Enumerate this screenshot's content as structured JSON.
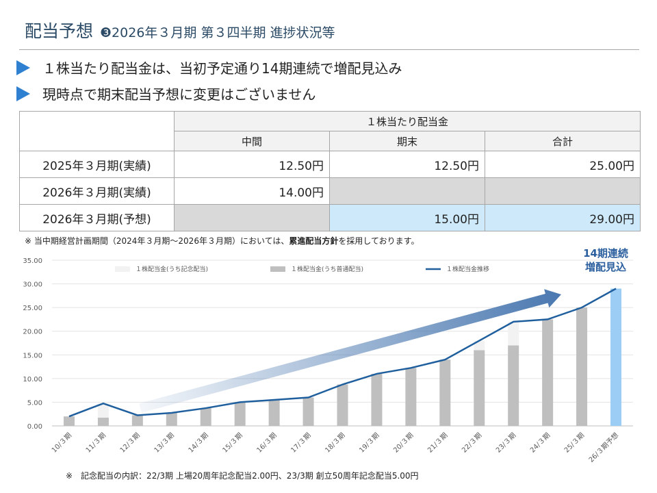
{
  "header": {
    "title": "配当予想",
    "subtitle": "❸2026年３月期 第３四半期 進捗状況等"
  },
  "bullets": [
    "１株当たり配当金は、当初予定通り14期連続で増配見込み",
    "現時点で期末配当予想に変更はございません"
  ],
  "dividend_table": {
    "group_header": "１株当たり配当金",
    "columns": [
      "中間",
      "期末",
      "合計"
    ],
    "rows": [
      {
        "label": "2025年３月期(実績)",
        "interim": "12.50円",
        "year_end": "12.50円",
        "total": "25.00円"
      },
      {
        "label": "2026年３月期(実績)",
        "interim": "14.00円",
        "year_end": "",
        "total": ""
      },
      {
        "label": "2026年３月期(予想)",
        "interim": "",
        "year_end": "15.00円",
        "total": "29.00円"
      }
    ]
  },
  "notes": {
    "policy_prefix": "※ 当中期経営計画期間（2024年３月期～2026年３月期）においては、",
    "policy_bold": "累進配当方針",
    "policy_suffix": "を採用しております。",
    "commemorative": "※　記念配当の内訳：22/3期 上場20周年記念配当2.00円、23/3期 創立50周年記念配当5.00円"
  },
  "callout": {
    "line1": "14期連続",
    "line2": "増配見込"
  },
  "colors": {
    "title": "#2b4a66",
    "bullet_marker": "#2f80d1",
    "ordinary_bar": "#bfbfbf",
    "commemorative_bar": "#f2f2f2",
    "forecast_bar": "#9ccdf5",
    "trend_line": "#1f5f9e",
    "arrow": "#4a78b0"
  },
  "chart_data": {
    "type": "bar",
    "categories": [
      "10/３期",
      "11/３期",
      "12/３期",
      "13/３期",
      "14/３期",
      "15/３期",
      "16/３期",
      "17/３期",
      "18/３期",
      "19/３期",
      "20/３期",
      "21/３期",
      "22/３期",
      "23/３期",
      "24/３期",
      "25/３期",
      "26/３期予想"
    ],
    "series": [
      {
        "name": "１株配当金(うち記念配当)",
        "type": "bar",
        "values": [
          0,
          3.0,
          0,
          0,
          0,
          0,
          0,
          0,
          0,
          0,
          0,
          0,
          2.0,
          5.0,
          0,
          0,
          0
        ]
      },
      {
        "name": "１株配当金(うち普通配当)",
        "type": "bar",
        "values": [
          2.0,
          1.75,
          2.25,
          2.75,
          3.75,
          5.0,
          5.5,
          6.0,
          8.75,
          11.0,
          12.25,
          14.0,
          16.0,
          17.0,
          22.5,
          25.0,
          29.0
        ]
      },
      {
        "name": "１株配当金推移",
        "type": "line",
        "values": [
          2.0,
          4.75,
          2.25,
          2.75,
          3.75,
          5.0,
          5.5,
          6.0,
          8.75,
          11.0,
          12.25,
          14.0,
          18.0,
          22.0,
          22.5,
          25.0,
          29.0
        ]
      }
    ],
    "forecast_index": 16,
    "yticks": [
      "0.00",
      "5.00",
      "10.00",
      "15.00",
      "20.00",
      "25.00",
      "30.00",
      "35.00"
    ],
    "ylim": [
      0,
      35
    ],
    "legend_position": "top",
    "grid": true
  }
}
